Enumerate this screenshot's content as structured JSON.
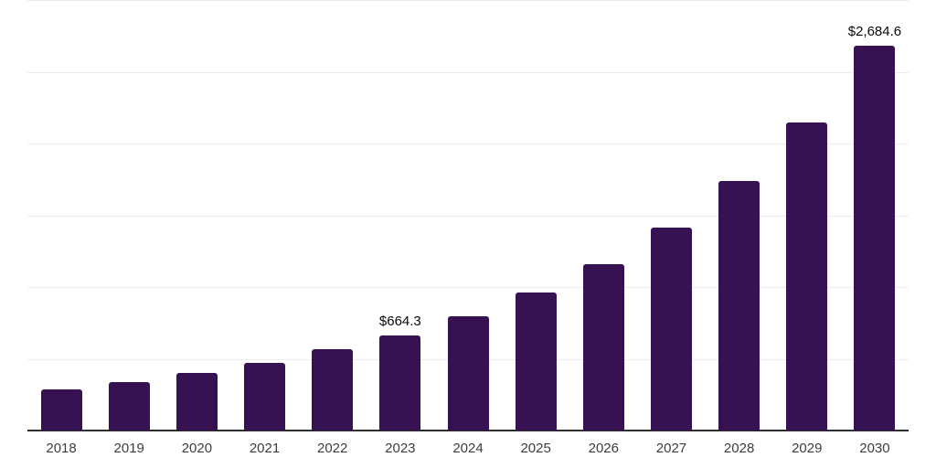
{
  "chart_data": {
    "type": "bar",
    "title": "",
    "xlabel": "",
    "ylabel": "",
    "categories": [
      "2018",
      "2019",
      "2020",
      "2021",
      "2022",
      "2023",
      "2024",
      "2025",
      "2026",
      "2027",
      "2028",
      "2029",
      "2030"
    ],
    "values": [
      288,
      335,
      402,
      473,
      566,
      664.3,
      799,
      964,
      1162,
      1417,
      1736,
      2148,
      2684.6
    ],
    "annotations": [
      {
        "category": "2023",
        "label": "$664.3"
      },
      {
        "category": "2030",
        "label": "$2,684.6"
      }
    ],
    "ylim": [
      0,
      3000
    ],
    "gridline_values": [
      500,
      1000,
      1500,
      2000,
      2500,
      3000
    ],
    "grid": "horizontal",
    "legend": "none",
    "y_axis_labels_visible": false,
    "colors": {
      "bar": "#361252",
      "gridline": "#ededed",
      "axis_line": "#2e2e2e",
      "tick_label": "#3d3d3d",
      "value_label": "#0a0a0a",
      "background": "#ffffff"
    }
  }
}
